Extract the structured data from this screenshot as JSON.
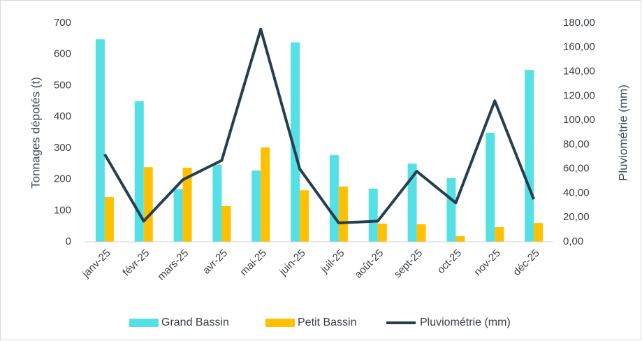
{
  "chart_data": {
    "type": "bar",
    "categories": [
      "janv-25",
      "févr-25",
      "mars-25",
      "avr-25",
      "mai-25",
      "juin-25",
      "juil-25",
      "août-25",
      "sept-25",
      "oct-25",
      "nov-25",
      "déc-25"
    ],
    "y_label": "Tonnages dépotés (t)",
    "y2_label": "Pluviométrie (mm)",
    "series": [
      {
        "name": "Grand Bassin",
        "type": "bar",
        "color": "#55e0e6",
        "values": [
          648,
          450,
          168,
          246,
          228,
          638,
          277,
          170,
          250,
          204,
          349,
          550
        ]
      },
      {
        "name": "Petit Bassin",
        "type": "bar",
        "color": "#ffc000",
        "values": [
          143,
          239,
          237,
          114,
          302,
          165,
          177,
          58,
          56,
          18,
          47,
          60
        ]
      },
      {
        "name": "Pluviométrie (mm)",
        "type": "line",
        "axis": "y2",
        "color": "#263f4f",
        "values": [
          72,
          17,
          51,
          67,
          175,
          60,
          15.5,
          17,
          58,
          32,
          116,
          35
        ]
      }
    ],
    "ylim": [
      0,
      700
    ],
    "yticks": [
      0,
      100,
      200,
      300,
      400,
      500,
      600,
      700
    ],
    "y2lim": [
      0,
      180
    ],
    "y2ticks": [
      {
        "value": 0,
        "label": "0,00"
      },
      {
        "value": 20,
        "label": "20,00"
      },
      {
        "value": 40,
        "label": "40,00"
      },
      {
        "value": 60,
        "label": "60,00"
      },
      {
        "value": 80,
        "label": "80,00"
      },
      {
        "value": 100,
        "label": "100,00"
      },
      {
        "value": 120,
        "label": "120,00"
      },
      {
        "value": 140,
        "label": "140,00"
      },
      {
        "value": 160,
        "label": "160,00"
      },
      {
        "value": 180,
        "label": "180,00"
      }
    ],
    "grid": false,
    "legend": "bottom"
  }
}
